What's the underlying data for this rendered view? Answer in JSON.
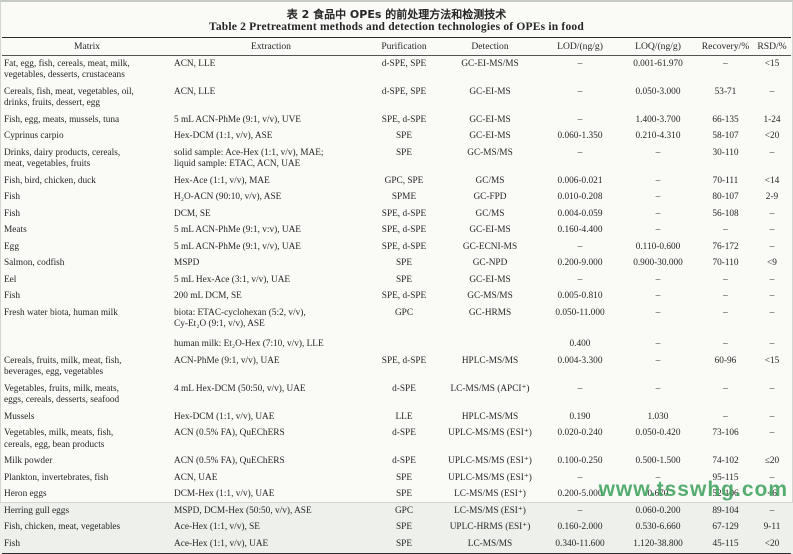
{
  "title": {
    "zh": "表 2  食品中 OPEs 的前处理方法和检测技术",
    "en": "Table 2  Pretreatment methods and detection technologies of OPEs in food"
  },
  "watermark": "www.tsswhg.com",
  "colors": {
    "watermark_green": "#3fa35d",
    "rule_dark": "#2b2b2b",
    "page_bg": "#eef0ec"
  },
  "table": {
    "headers": [
      "Matrix",
      "Extraction",
      "Purification",
      "Detection",
      "LOD/(ng/g)",
      "LOQ/(ng/g)",
      "Recovery/%",
      "RSD/%"
    ],
    "column_keys": [
      "matrix",
      "extraction",
      "purification",
      "detection",
      "lod",
      "loq",
      "recovery",
      "rsd"
    ],
    "rows": [
      {
        "cells": [
          "Fat, egg, fish, cereals, meat, milk,\nvegetables, desserts, crustaceans",
          "ACN, LLE",
          "d-SPE, SPE",
          "GC-EI-MS/MS",
          "–",
          "0.001-61.970",
          "–",
          "<15"
        ]
      },
      {
        "cells": [
          "Cereals, fish, meat, vegetables, oil,\ndrinks, fruits, dessert, egg",
          "ACN, LLE",
          "d-SPE, SPE",
          "GC-EI-MS",
          "–",
          "0.050-3.000",
          "53-71",
          "–"
        ]
      },
      {
        "cells": [
          "Fish, egg, meats, mussels, tuna",
          "5 mL ACN-PhMe (9:1, v/v), UVE",
          "SPE, d-SPE",
          "GC-EI-MS",
          "–",
          "1.400-3.700",
          "66-135",
          "1-24"
        ]
      },
      {
        "cells": [
          "Cyprinus carpio",
          "Hex-DCM (1:1, v/v), ASE",
          "SPE",
          "GC-EI-MS",
          "0.060-1.350",
          "0.210-4.310",
          "58-107",
          "<20"
        ]
      },
      {
        "cells": [
          "Drinks, dairy products, cereals,\nmeat, vegetables, fruits",
          "solid sample: Ace-Hex (1:1, v/v), MAE;\nliquid sample: ETAC, ACN, UAE",
          "SPE",
          "GC-MS/MS",
          "–",
          "–",
          "30-110",
          "–"
        ]
      },
      {
        "cells": [
          "Fish, bird, chicken, duck",
          "Hex-Ace (1:1, v/v), MAE",
          "GPC, SPE",
          "GC/MS",
          "0.006-0.021",
          "–",
          "70-111",
          "<14"
        ]
      },
      {
        "cells": [
          "Fish",
          "H₂O-ACN (90:10, v/v), ASE",
          "SPME",
          "GC-FPD",
          "0.010-0.208",
          "–",
          "80-107",
          "2-9"
        ]
      },
      {
        "cells": [
          "Fish",
          "DCM, SE",
          "SPE, d-SPE",
          "GC/MS",
          "0.004-0.059",
          "–",
          "56-108",
          "–"
        ]
      },
      {
        "cells": [
          "Meats",
          "5 mL ACN-PhMe (9:1, v:v), UAE",
          "SPE, d-SPE",
          "GC-EI-MS",
          "0.160-4.400",
          "–",
          "–",
          "–"
        ]
      },
      {
        "cells": [
          "Egg",
          "5 mL ACN-PhMe (9:1, v/v), UAE",
          "SPE, d-SPE",
          "GC-ECNI-MS",
          "–",
          "0.110-0.600",
          "76-172",
          "–"
        ]
      },
      {
        "cells": [
          "Salmon, codfish",
          "MSPD",
          "SPE",
          "GC-NPD",
          "0.200-9.000",
          "0.900-30.000",
          "70-110",
          "<9"
        ]
      },
      {
        "cells": [
          "Eel",
          "5 mL Hex-Ace (3:1, v/v), UAE",
          "SPE",
          "GC-EI-MS",
          "–",
          "–",
          "–",
          "–"
        ]
      },
      {
        "cells": [
          "Fish",
          "200 mL DCM, SE",
          "SPE, d-SPE",
          "GC-MS/MS",
          "0.005-0.810",
          "–",
          "–",
          "–"
        ]
      },
      {
        "cells": [
          "Fresh water biota, human milk",
          "biota: ETAC-cyclohexan (5:2, v/v),\nCy-Et₂O (9:1, v/v), ASE",
          "GPC",
          "GC-HRMS",
          "0.050-11.000",
          "–",
          "–",
          "–"
        ]
      },
      {
        "cells": [
          "",
          "human milk: Et₂O-Hex (7:10, v/v), LLE",
          "",
          "",
          "0.400",
          "–",
          "–",
          "–"
        ],
        "variant": "sub"
      },
      {
        "cells": [
          "Cereals, fruits, milk, meat, fish,\nbeverages, egg, vegetables",
          "ACN-PhMe (9:1, v/v), UAE",
          "SPE, d-SPE",
          "HPLC-MS/MS",
          "0.004-3.300",
          "–",
          "60-96",
          "<15"
        ]
      },
      {
        "cells": [
          "Vegetables, fruits, milk, meats,\neggs, cereals, desserts, seafood",
          "4 mL Hex-DCM (50:50, v/v), UAE",
          "d-SPE",
          "LC-MS/MS (APCI⁺)",
          "–",
          "–",
          "–",
          "–"
        ]
      },
      {
        "cells": [
          "Mussels",
          "Hex-DCM (1:1, v/v), UAE",
          "LLE",
          "HPLC-MS/MS",
          "0.190",
          "1.030",
          "–",
          "–"
        ]
      },
      {
        "cells": [
          "Vegetables, milk, meats, fish,\ncereals, egg, bean products",
          "ACN (0.5% FA), QuEChERS",
          "d-SPE",
          "UPLC-MS/MS (ESI⁺)",
          "0.020-0.240",
          "0.050-0.420",
          "73-106",
          "–"
        ]
      },
      {
        "cells": [
          "Milk powder",
          "ACN (0.5% FA), QuEChERS",
          "d-SPE",
          "UPLC-MS/MS (ESI⁺)",
          "0.100-0.250",
          "0.500-1.500",
          "74-102",
          "≤20"
        ]
      },
      {
        "cells": [
          "Plankton, invertebrates, fish",
          "ACN, UAE",
          "SPE",
          "UPLC-MS/MS (ESI⁺)",
          "–",
          "–",
          "95-115",
          "–"
        ]
      },
      {
        "cells": [
          "Heron eggs",
          "DCM-Hex (1:1, v/v), UAE",
          "SPE",
          "LC-MS/MS (ESI⁺)",
          "0.200-5.000",
          "0.670",
          "52-106",
          "<6"
        ]
      },
      {
        "cells": [
          "Herring gull eggs",
          "MSPD, DCM-Hex (50:50, v/v), ASE",
          "GPC",
          "LC-MS/MS (ESI⁺)",
          "–",
          "0.060-0.200",
          "89-104",
          "–"
        ]
      },
      {
        "cells": [
          "Fish, chicken, meat, vegetables",
          "Ace-Hex (1:1, v/v), SE",
          "SPE",
          "UPLC-HRMS (ESI⁺)",
          "0.160-2.000",
          "0.530-6.660",
          "67-129",
          "9-11"
        ]
      },
      {
        "cells": [
          "Fish",
          "Ace-Hex (1:1, v/v), UAE",
          "SPE",
          "LC-MS/MS",
          "0.340-11.600",
          "1.120-38.800",
          "45-115",
          "<20"
        ]
      }
    ]
  }
}
